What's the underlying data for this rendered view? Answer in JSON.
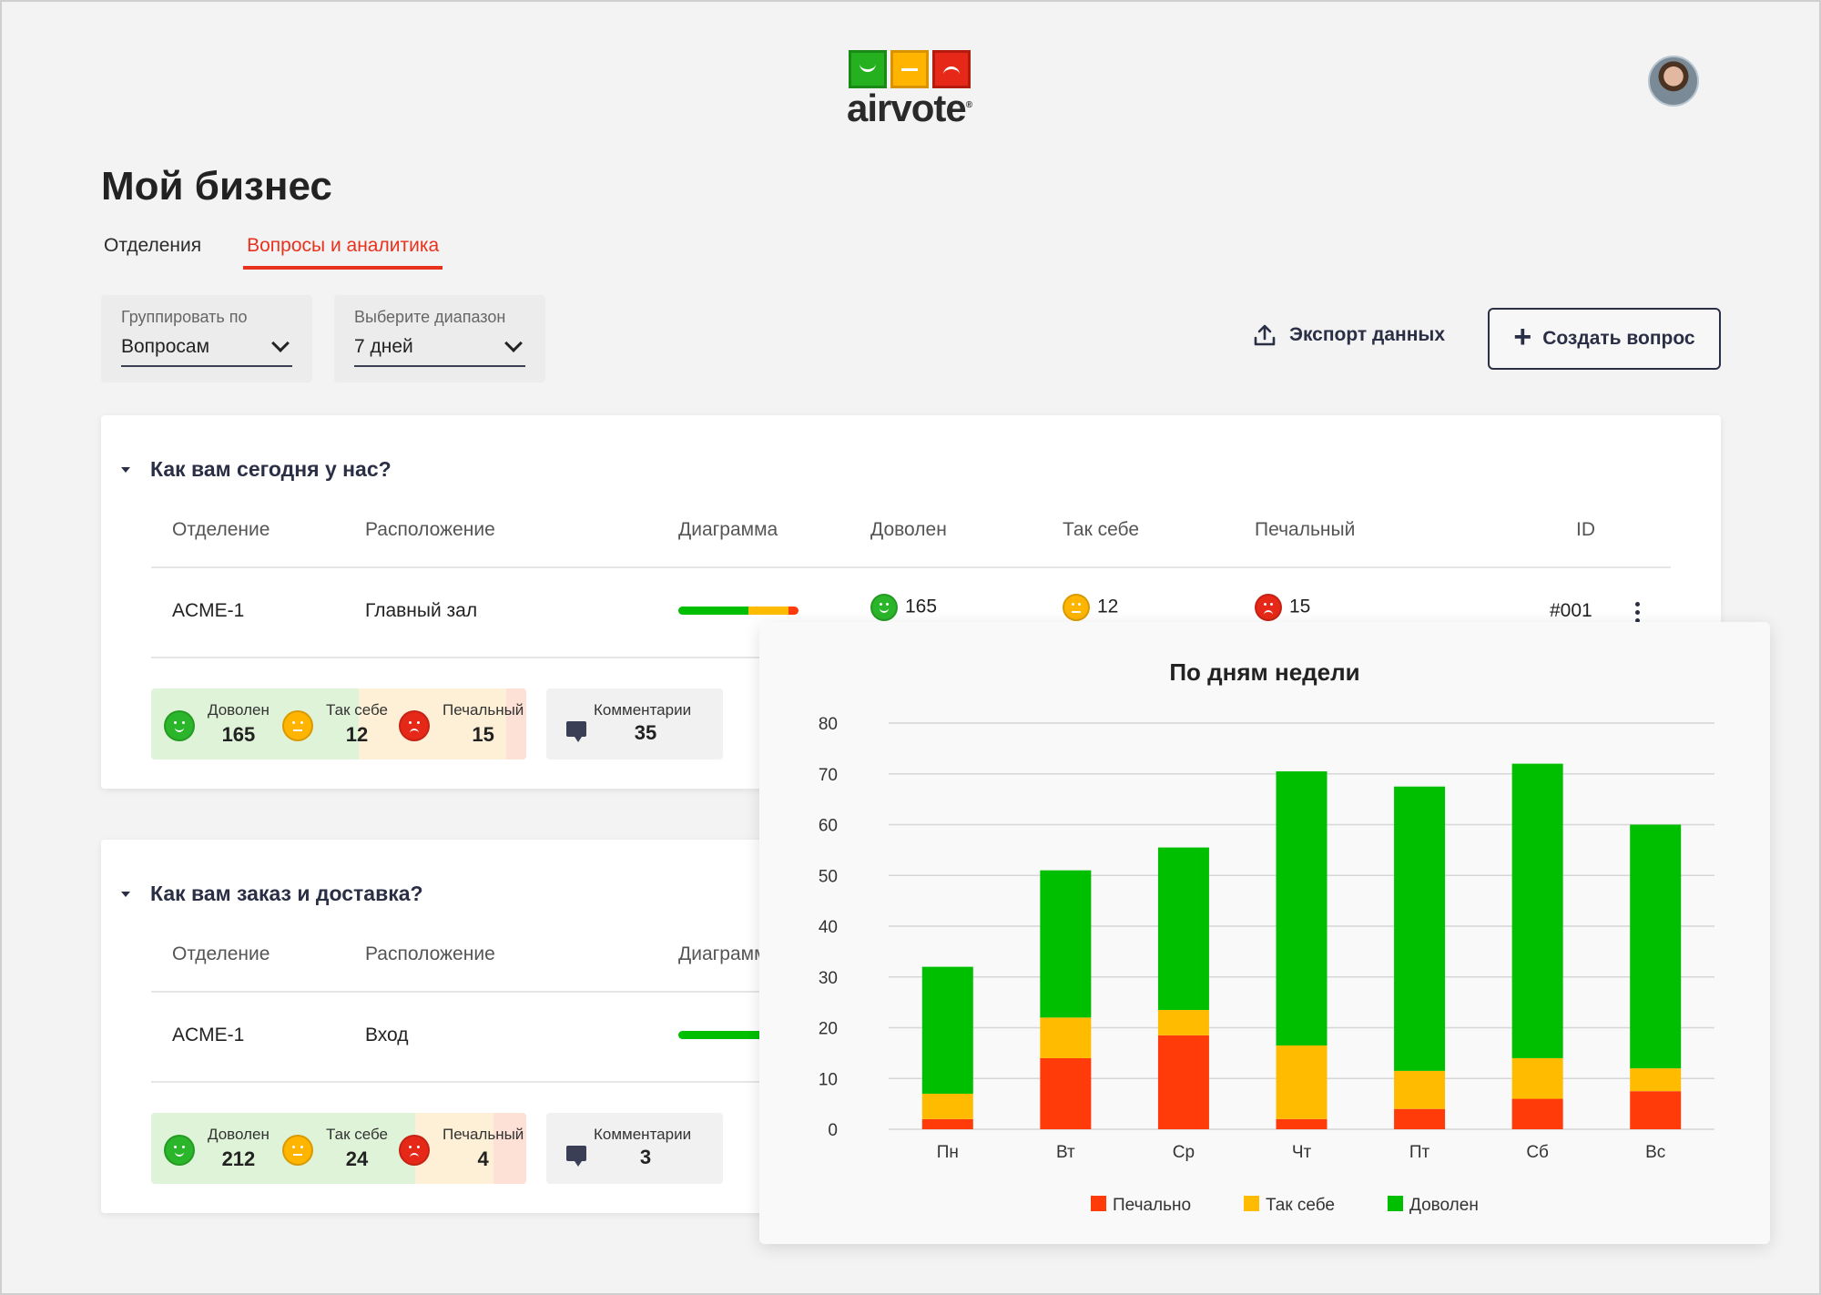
{
  "brand": {
    "logo_text": "airvote"
  },
  "page": {
    "title": "Мой бизнес"
  },
  "tabs": [
    {
      "label": "Отделения",
      "active": false
    },
    {
      "label": "Вопросы и аналитика",
      "active": true
    }
  ],
  "filters": {
    "group_by": {
      "label": "Группировать по",
      "value": "Вопросам"
    },
    "range": {
      "label": "Выберите диапазон",
      "value": "7 дней"
    }
  },
  "actions": {
    "export_label": "Экспорт данных",
    "create_label": "Создать вопрос"
  },
  "columns": {
    "department": "Отделение",
    "location": "Расположение",
    "diagram": "Диаграмма",
    "happy": "Доволен",
    "neutral": "Так себе",
    "sad": "Печальный",
    "id": "ID"
  },
  "questions": [
    {
      "title": "Как вам сегодня у нас?",
      "row": {
        "department": "ACME-1",
        "location": "Главный зал",
        "happy": "165",
        "neutral": "12",
        "sad": "15",
        "id": "#001"
      },
      "summary": {
        "happy_label": "Доволен",
        "happy": "165",
        "neutral_label": "Так себе",
        "neutral": "12",
        "sad_label": "Печальный",
        "sad": "15",
        "comments_label": "Комментарии",
        "comments": "35"
      }
    },
    {
      "title": "Как вам заказ и доставка?",
      "row": {
        "department": "ACME-1",
        "location": "Вход"
      },
      "summary": {
        "happy_label": "Доволен",
        "happy": "212",
        "neutral_label": "Так себе",
        "neutral": "24",
        "sad_label": "Печальный",
        "sad": "4",
        "comments_label": "Комментарии",
        "comments": "3"
      }
    }
  ],
  "colors": {
    "happy": "#00bf00",
    "neutral": "#ffbb00",
    "sad": "#ff3b0a",
    "accent": "#e8321e",
    "dark": "#2b2f45"
  },
  "chart_data": {
    "type": "bar",
    "stacked": true,
    "title": "По дням недели",
    "categories": [
      "Пн",
      "Вт",
      "Ср",
      "Чт",
      "Пт",
      "Сб",
      "Вс"
    ],
    "series": [
      {
        "name": "Печально",
        "color": "#ff3b0a",
        "values": [
          2,
          14,
          18.5,
          2,
          4,
          6,
          7.5
        ]
      },
      {
        "name": "Так себе",
        "color": "#ffbb00",
        "values": [
          5,
          8,
          5,
          14.5,
          7.5,
          8,
          4.5
        ]
      },
      {
        "name": "Доволен",
        "color": "#00bf00",
        "values": [
          25,
          29,
          32,
          54,
          56,
          58,
          48
        ]
      }
    ],
    "ylim": [
      0,
      80
    ],
    "yticks": [
      0,
      10,
      20,
      30,
      40,
      50,
      60,
      70,
      80
    ],
    "grid": true,
    "legend": "bottom"
  }
}
